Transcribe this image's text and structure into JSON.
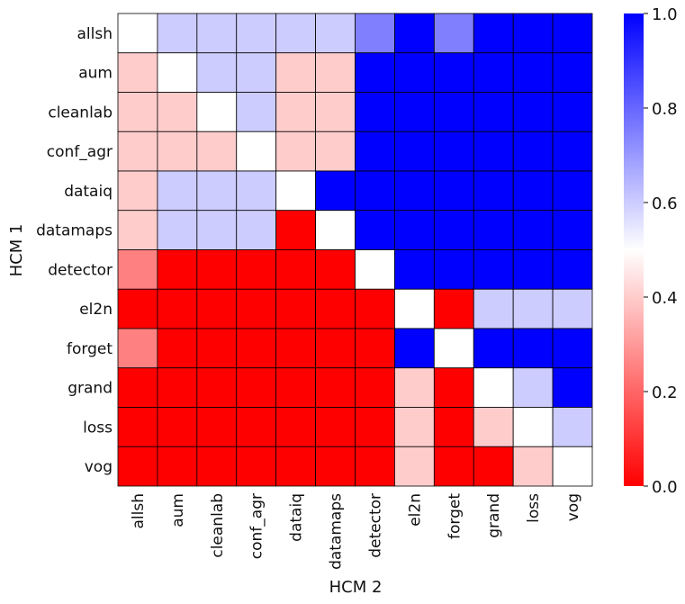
{
  "chart_data": {
    "type": "heatmap",
    "title": "",
    "xlabel": "HCM 2",
    "ylabel": "HCM 1",
    "categories_x": [
      "allsh",
      "aum",
      "cleanlab",
      "conf_agr",
      "dataiq",
      "datamaps",
      "detector",
      "el2n",
      "forget",
      "grand",
      "loss",
      "vog"
    ],
    "categories_y": [
      "allsh",
      "aum",
      "cleanlab",
      "conf_agr",
      "dataiq",
      "datamaps",
      "detector",
      "el2n",
      "forget",
      "grand",
      "loss",
      "vog"
    ],
    "values": [
      [
        0.5,
        0.6,
        0.6,
        0.6,
        0.6,
        0.6,
        0.75,
        1.0,
        0.75,
        1.0,
        1.0,
        1.0
      ],
      [
        0.4,
        0.5,
        0.6,
        0.6,
        0.4,
        0.4,
        1.0,
        1.0,
        1.0,
        1.0,
        1.0,
        1.0
      ],
      [
        0.4,
        0.4,
        0.5,
        0.6,
        0.4,
        0.4,
        1.0,
        1.0,
        1.0,
        1.0,
        1.0,
        1.0
      ],
      [
        0.4,
        0.4,
        0.4,
        0.5,
        0.4,
        0.4,
        1.0,
        1.0,
        1.0,
        1.0,
        1.0,
        1.0
      ],
      [
        0.4,
        0.6,
        0.6,
        0.6,
        0.5,
        1.0,
        1.0,
        1.0,
        1.0,
        1.0,
        1.0,
        1.0
      ],
      [
        0.4,
        0.6,
        0.6,
        0.6,
        0.0,
        0.5,
        1.0,
        1.0,
        1.0,
        1.0,
        1.0,
        1.0
      ],
      [
        0.25,
        0.0,
        0.0,
        0.0,
        0.0,
        0.0,
        0.5,
        1.0,
        1.0,
        1.0,
        1.0,
        1.0
      ],
      [
        0.0,
        0.0,
        0.0,
        0.0,
        0.0,
        0.0,
        0.0,
        0.5,
        0.0,
        0.6,
        0.6,
        0.6
      ],
      [
        0.25,
        0.0,
        0.0,
        0.0,
        0.0,
        0.0,
        0.0,
        1.0,
        0.5,
        1.0,
        1.0,
        1.0
      ],
      [
        0.0,
        0.0,
        0.0,
        0.0,
        0.0,
        0.0,
        0.0,
        0.4,
        0.0,
        0.5,
        0.6,
        1.0
      ],
      [
        0.0,
        0.0,
        0.0,
        0.0,
        0.0,
        0.0,
        0.0,
        0.4,
        0.0,
        0.4,
        0.5,
        0.6
      ],
      [
        0.0,
        0.0,
        0.0,
        0.0,
        0.0,
        0.0,
        0.0,
        0.4,
        0.0,
        0.0,
        0.4,
        0.5
      ]
    ],
    "colorbar": {
      "colormap": "bwr_r",
      "low_color": "#ff0000",
      "mid_color": "#ffffff",
      "high_color": "#0000ff",
      "vmin": 0.0,
      "vmax": 1.0,
      "ticks": [
        "0.0",
        "0.2",
        "0.4",
        "0.6",
        "0.8",
        "1.0"
      ],
      "tick_values": [
        0.0,
        0.2,
        0.4,
        0.6,
        0.8,
        1.0
      ]
    },
    "grid_line_color": "#000000"
  }
}
